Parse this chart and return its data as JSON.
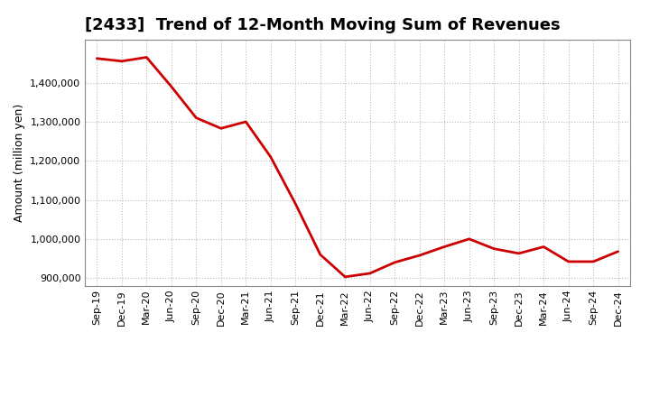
{
  "title": "[2433]  Trend of 12-Month Moving Sum of Revenues",
  "ylabel": "Amount (million yen)",
  "line_color": "#cc0000",
  "background_color": "#ffffff",
  "plot_bg_color": "#ffffff",
  "grid_color": "#bbbbbb",
  "x_labels": [
    "Sep-19",
    "Dec-19",
    "Mar-20",
    "Jun-20",
    "Sep-20",
    "Dec-20",
    "Mar-21",
    "Jun-21",
    "Sep-21",
    "Dec-21",
    "Mar-22",
    "Jun-22",
    "Sep-22",
    "Dec-22",
    "Mar-23",
    "Jun-23",
    "Sep-23",
    "Dec-23",
    "Mar-24",
    "Jun-24",
    "Sep-24",
    "Dec-24"
  ],
  "values": [
    1462000,
    1455000,
    1465000,
    1390000,
    1310000,
    1283000,
    1300000,
    1210000,
    1090000,
    960000,
    903000,
    912000,
    940000,
    958000,
    980000,
    1000000,
    975000,
    963000,
    980000,
    942000,
    942000,
    968000
  ],
  "ylim": [
    880000,
    1510000
  ],
  "yticks": [
    900000,
    1000000,
    1100000,
    1200000,
    1300000,
    1400000
  ],
  "line_width": 2.0,
  "title_fontsize": 13,
  "tick_fontsize": 8,
  "ylabel_fontsize": 9
}
